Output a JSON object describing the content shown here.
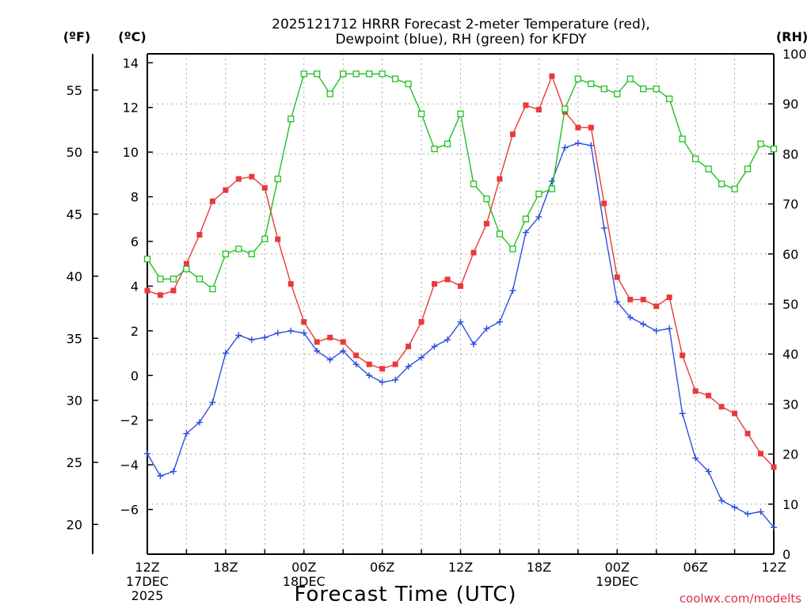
{
  "chart_data": {
    "type": "line",
    "title_lines": [
      "2025121712 HRRR Forecast 2-meter Temperature (red),",
      "Dewpoint (blue), RH (green) for KFDY"
    ],
    "xlabel": "Forecast Time (UTC)",
    "credit": "coolwx.com/modelts",
    "units": {
      "fahrenheit": "(ºF)",
      "celsius": "(ºC)",
      "rh": "(RH)"
    },
    "x_range_hours": [
      0,
      48
    ],
    "x_ticks": [
      {
        "h": 0,
        "lines": [
          "12Z",
          "17DEC",
          "2025"
        ]
      },
      {
        "h": 6,
        "lines": [
          "18Z"
        ]
      },
      {
        "h": 12,
        "lines": [
          "00Z",
          "18DEC"
        ]
      },
      {
        "h": 18,
        "lines": [
          "06Z"
        ]
      },
      {
        "h": 24,
        "lines": [
          "12Z"
        ]
      },
      {
        "h": 30,
        "lines": [
          "18Z"
        ]
      },
      {
        "h": 36,
        "lines": [
          "00Z",
          "19DEC"
        ]
      },
      {
        "h": 42,
        "lines": [
          "06Z"
        ]
      },
      {
        "h": 48,
        "lines": [
          "12Z"
        ]
      }
    ],
    "y_celsius": {
      "range": [
        -8,
        14.4
      ],
      "ticks": [
        -6,
        -4,
        -2,
        0,
        2,
        4,
        6,
        8,
        10,
        12,
        14
      ]
    },
    "y_fahrenheit": {
      "ticks": [
        20,
        25,
        30,
        35,
        40,
        45,
        50,
        55
      ]
    },
    "y_rh": {
      "range": [
        0,
        100
      ],
      "ticks": [
        0,
        10,
        20,
        30,
        40,
        50,
        60,
        70,
        80,
        90,
        100
      ]
    },
    "series": [
      {
        "name": "Temperature",
        "axis": "celsius",
        "color": "#e83a3a",
        "marker": "filled-square",
        "values": [
          3.8,
          3.6,
          3.8,
          5.0,
          6.3,
          7.8,
          8.3,
          8.8,
          8.9,
          8.4,
          6.1,
          4.1,
          2.4,
          1.5,
          1.7,
          1.5,
          0.9,
          0.5,
          0.3,
          0.5,
          1.3,
          2.4,
          4.1,
          4.3,
          4.0,
          5.5,
          6.8,
          8.8,
          10.8,
          12.1,
          11.9,
          13.4,
          11.8,
          11.1,
          11.1,
          7.7,
          4.4,
          3.4,
          3.4,
          3.1,
          3.5,
          0.9,
          -0.7,
          -0.9,
          -1.4,
          -1.7,
          -2.6,
          -3.5,
          -4.1
        ]
      },
      {
        "name": "Dewpoint",
        "axis": "celsius",
        "color": "#2b4fe0",
        "marker": "plus",
        "values": [
          -3.5,
          -4.5,
          -4.3,
          -2.6,
          -2.1,
          -1.2,
          1.0,
          1.8,
          1.6,
          1.7,
          1.9,
          2.0,
          1.9,
          1.1,
          0.7,
          1.1,
          0.5,
          0.0,
          -0.3,
          -0.2,
          0.4,
          0.8,
          1.3,
          1.6,
          2.4,
          1.4,
          2.1,
          2.4,
          3.8,
          6.4,
          7.1,
          8.7,
          10.2,
          10.4,
          10.3,
          6.6,
          3.3,
          2.6,
          2.3,
          2.0,
          2.1,
          -1.7,
          -3.7,
          -4.3,
          -5.6,
          -5.9,
          -6.2,
          -6.1,
          -6.8
        ]
      },
      {
        "name": "RH",
        "axis": "rh",
        "color": "#22c022",
        "marker": "open-square",
        "values": [
          59,
          55,
          55,
          57,
          55,
          53,
          60,
          61,
          60,
          63,
          75,
          87,
          96,
          96,
          92,
          96,
          96,
          96,
          96,
          95,
          94,
          88,
          81,
          82,
          88,
          74,
          71,
          64,
          61,
          67,
          72,
          73,
          89,
          95,
          94,
          93,
          92,
          95,
          93,
          93,
          91,
          83,
          79,
          77,
          74,
          73,
          77,
          82,
          81
        ]
      }
    ]
  }
}
